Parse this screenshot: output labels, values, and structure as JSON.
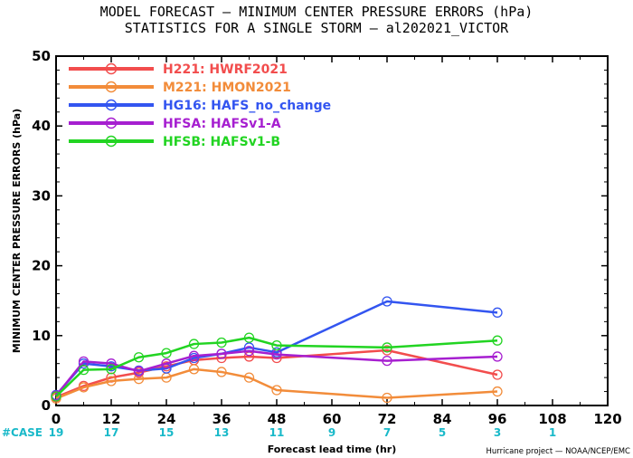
{
  "page": {
    "title_line1": "MODEL FORECAST — MINIMUM CENTER PRESSURE ERRORS (hPa)",
    "title_line2": "STATISTICS FOR A SINGLE STORM — al202021_VICTOR",
    "credit": "Hurricane project — NOAA/NCEP/EMC"
  },
  "chart_data": {
    "type": "line",
    "xlabel": "Forecast lead time (hr)",
    "ylabel": "MINIMUM CENTER PRESSURE ERRORS (hPa)",
    "xlim": [
      0,
      120
    ],
    "ylim": [
      0,
      50
    ],
    "x_ticks": [
      0,
      12,
      24,
      36,
      48,
      60,
      72,
      84,
      96,
      108,
      120
    ],
    "y_ticks": [
      0,
      10,
      20,
      30,
      40,
      50
    ],
    "grid": false,
    "legend_position": "top-left",
    "cases": {
      "label": "#CASE",
      "values": [
        {
          "x": 0,
          "n": "19"
        },
        {
          "x": 12,
          "n": "17"
        },
        {
          "x": 24,
          "n": "15"
        },
        {
          "x": 36,
          "n": "13"
        },
        {
          "x": 48,
          "n": "11"
        },
        {
          "x": 60,
          "n": "9"
        },
        {
          "x": 72,
          "n": "7"
        },
        {
          "x": 84,
          "n": "5"
        },
        {
          "x": 96,
          "n": "3"
        },
        {
          "x": 108,
          "n": "1"
        }
      ],
      "color": "#19b9c9"
    },
    "series": [
      {
        "code": "H221",
        "name": "HWRF2021",
        "color": "#f24d4d",
        "x": [
          0,
          6,
          12,
          18,
          24,
          30,
          36,
          42,
          48,
          72,
          96
        ],
        "y": [
          1.2,
          2.8,
          4.0,
          4.7,
          5.6,
          6.5,
          6.8,
          7.0,
          6.8,
          7.9,
          4.4
        ]
      },
      {
        "code": "M221",
        "name": "HMON2021",
        "color": "#f28c3a",
        "x": [
          0,
          6,
          12,
          18,
          24,
          30,
          36,
          42,
          48,
          72,
          96
        ],
        "y": [
          1.0,
          2.6,
          3.5,
          3.8,
          4.0,
          5.2,
          4.8,
          4.0,
          2.2,
          1.1,
          2.0
        ]
      },
      {
        "code": "HG16",
        "name": "HAFS_no_change",
        "color": "#3355f0",
        "x": [
          0,
          6,
          12,
          18,
          24,
          30,
          36,
          42,
          48,
          72,
          96
        ],
        "y": [
          1.5,
          6.0,
          5.6,
          5.0,
          5.3,
          6.8,
          7.4,
          8.3,
          7.6,
          14.9,
          13.3
        ]
      },
      {
        "code": "HFSA",
        "name": "HAFSv1-A",
        "color": "#a61fd0",
        "x": [
          0,
          6,
          12,
          18,
          24,
          30,
          36,
          42,
          48,
          72,
          96
        ],
        "y": [
          1.4,
          6.3,
          6.0,
          4.9,
          6.0,
          7.1,
          7.4,
          7.8,
          7.3,
          6.4,
          7.0
        ]
      },
      {
        "code": "HFSB",
        "name": "HAFSv1-B",
        "color": "#22d422",
        "x": [
          0,
          6,
          12,
          18,
          24,
          30,
          36,
          42,
          48,
          72,
          96
        ],
        "y": [
          1.3,
          5.1,
          5.2,
          6.9,
          7.5,
          8.8,
          9.0,
          9.7,
          8.6,
          8.3,
          9.3
        ]
      }
    ]
  }
}
